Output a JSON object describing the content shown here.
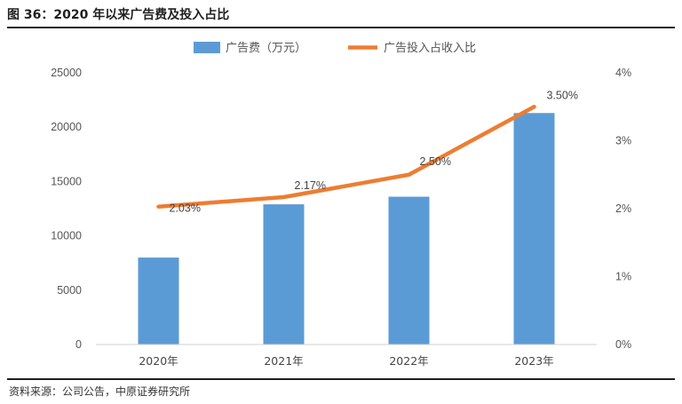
{
  "figure": {
    "title": "图 36：2020 年以来广告费及投入占比",
    "source": "资料来源：公司公告，中原证券研究所"
  },
  "colors": {
    "bar": "#5b9bd5",
    "line": "#ed7d31",
    "rule": "#1f1f1f"
  },
  "chart_data": {
    "type": "bar",
    "title": "",
    "categories": [
      "2020年",
      "2021年",
      "2022年",
      "2023年"
    ],
    "series": [
      {
        "name": "广告费（万元）",
        "type": "bar",
        "axis": "left",
        "values": [
          8000,
          12900,
          13600,
          21300
        ]
      },
      {
        "name": "广告投入占收入比",
        "type": "line",
        "axis": "right",
        "values": [
          2.03,
          2.17,
          2.5,
          3.5
        ],
        "labels": [
          "2.03%",
          "2.17%",
          "2.50%",
          "3.50%"
        ]
      }
    ],
    "y_left": {
      "ylim": [
        0,
        25000
      ],
      "ticks": [
        "0",
        "5000",
        "10000",
        "15000",
        "20000",
        "25000"
      ]
    },
    "y_right": {
      "ylim": [
        0,
        4
      ],
      "ticks": [
        "0%",
        "1%",
        "2%",
        "3%",
        "4%"
      ]
    },
    "legend_position": "top-center",
    "grid": false
  }
}
